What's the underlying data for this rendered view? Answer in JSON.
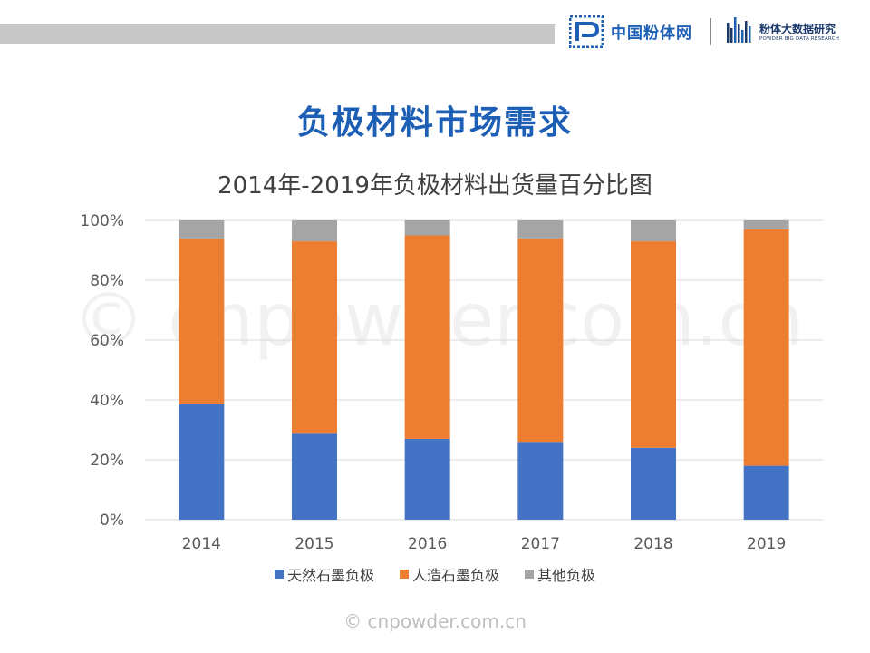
{
  "header": {
    "logo1_text": "中国粉体网",
    "logo2_title": "粉体大数据研究",
    "logo2_subtitle": "POWDER BIG DATA RESEARCH"
  },
  "page_title": "负极材料市场需求",
  "watermark": "© cnpowder.com.cn",
  "colors": {
    "natural": "#4472c4",
    "artificial": "#ed7d31",
    "other": "#a5a5a5",
    "title": "#1d5fb5"
  },
  "chart_data": {
    "type": "bar",
    "stacked": true,
    "title": "2014年-2019年负极材料出货量百分比图",
    "categories": [
      "2014",
      "2015",
      "2016",
      "2017",
      "2018",
      "2019"
    ],
    "series": [
      {
        "name": "天然石墨负极",
        "color": "#4472c4",
        "values": [
          38.5,
          29,
          27,
          26,
          24,
          18
        ]
      },
      {
        "name": "人造石墨负极",
        "color": "#ed7d31",
        "values": [
          55.5,
          64,
          68,
          68,
          69,
          79
        ]
      },
      {
        "name": "其他负极",
        "color": "#a5a5a5",
        "values": [
          6,
          7,
          5,
          6,
          7,
          3
        ]
      }
    ],
    "yticks": [
      "0%",
      "20%",
      "40%",
      "60%",
      "80%",
      "100%"
    ],
    "ylim": [
      0,
      100
    ],
    "grid": true,
    "legend_position": "bottom"
  }
}
